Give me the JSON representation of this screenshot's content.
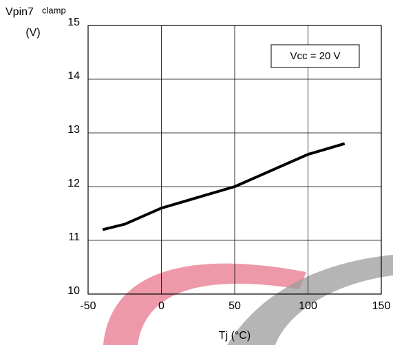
{
  "chart_data": {
    "type": "line",
    "y_label": "Vpin7",
    "y_label_sub": "clamp",
    "y_unit": "(V)",
    "x_label": "Tj  (°C)",
    "annotation": "Vcc = 20 V",
    "x": [
      -40,
      -25,
      0,
      25,
      50,
      75,
      100,
      125
    ],
    "series": [
      {
        "color": "#000000",
        "values": [
          11.2,
          11.3,
          11.6,
          11.8,
          12.0,
          12.3,
          12.6,
          12.8
        ]
      }
    ],
    "xlim": [
      -50,
      150
    ],
    "xticks": [
      -50,
      0,
      50,
      100,
      150
    ],
    "ylim": [
      10,
      15
    ],
    "yticks": [
      10,
      11,
      12,
      13,
      14,
      15
    ],
    "grid": true
  }
}
